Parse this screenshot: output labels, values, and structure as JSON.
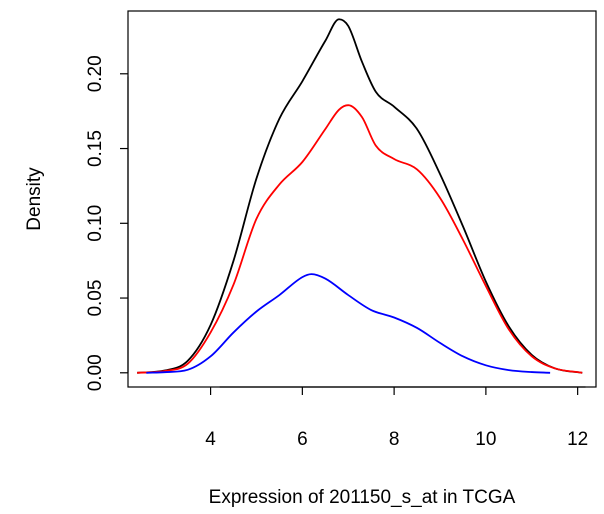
{
  "chart_data": {
    "type": "line",
    "title": "",
    "xlabel": "Expression of 201150_s_at in TCGA",
    "ylabel": "Density",
    "xlim": [
      2.2,
      12.4
    ],
    "ylim": [
      -0.0095,
      0.242
    ],
    "xticks": [
      4,
      6,
      8,
      10,
      12
    ],
    "yticks": [
      0.0,
      0.05,
      0.1,
      0.15,
      0.2
    ],
    "ytick_labels": [
      "0.00",
      "0.05",
      "0.10",
      "0.15",
      "0.20"
    ],
    "grid": false,
    "legend": "none",
    "series": [
      {
        "color": "#000000",
        "x": [
          2.4,
          3.0,
          3.5,
          4.0,
          4.5,
          5.0,
          5.5,
          6.0,
          6.5,
          6.8,
          7.0,
          7.3,
          7.6,
          8.0,
          8.5,
          9.0,
          9.5,
          10.0,
          10.5,
          11.0,
          11.5,
          12.1
        ],
        "y": [
          0.0,
          0.0015,
          0.008,
          0.032,
          0.075,
          0.13,
          0.17,
          0.195,
          0.222,
          0.2365,
          0.232,
          0.208,
          0.188,
          0.178,
          0.163,
          0.133,
          0.098,
          0.061,
          0.031,
          0.012,
          0.003,
          0.0
        ]
      },
      {
        "color": "#ff0000",
        "x": [
          2.4,
          3.0,
          3.5,
          4.0,
          4.5,
          5.0,
          5.5,
          6.0,
          6.5,
          6.8,
          7.0,
          7.3,
          7.6,
          8.0,
          8.5,
          9.0,
          9.5,
          10.0,
          10.5,
          11.0,
          11.5,
          12.1
        ],
        "y": [
          0.0,
          0.0012,
          0.006,
          0.027,
          0.059,
          0.103,
          0.126,
          0.141,
          0.163,
          0.176,
          0.179,
          0.171,
          0.152,
          0.143,
          0.136,
          0.117,
          0.089,
          0.058,
          0.029,
          0.011,
          0.003,
          0.0
        ]
      },
      {
        "color": "#0000ff",
        "x": [
          2.6,
          3.0,
          3.5,
          4.0,
          4.5,
          5.0,
          5.5,
          6.0,
          6.2,
          6.5,
          7.0,
          7.5,
          8.0,
          8.5,
          9.0,
          9.5,
          10.0,
          10.5,
          11.0,
          11.4
        ],
        "y": [
          0.0,
          0.0004,
          0.002,
          0.011,
          0.027,
          0.041,
          0.052,
          0.064,
          0.066,
          0.063,
          0.052,
          0.042,
          0.037,
          0.03,
          0.02,
          0.011,
          0.005,
          0.0018,
          0.0005,
          0.0
        ]
      }
    ]
  }
}
